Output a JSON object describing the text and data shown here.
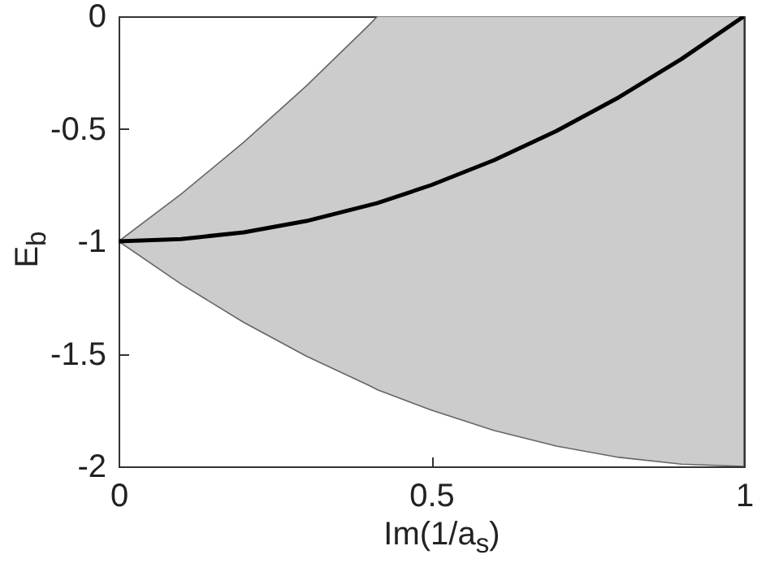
{
  "chart_data": {
    "type": "line",
    "xlabel": "Im(1/a$_{s}$)",
    "ylabel": "E$_{b}$",
    "x": [
      0,
      0.1,
      0.2,
      0.3,
      0.4,
      0.414,
      0.5,
      0.6,
      0.7,
      0.8,
      0.9,
      1
    ],
    "series": [
      {
        "color": "#000000",
        "values": [
          -1,
          -0.99,
          -0.96,
          -0.91,
          -0.84,
          -0.83,
          -0.75,
          -0.64,
          -0.51,
          -0.36,
          -0.19,
          0
        ],
        "lower": [
          -1,
          -1.19,
          -1.36,
          -1.51,
          -1.64,
          -1.66,
          -1.75,
          -1.84,
          -1.91,
          -1.96,
          -1.99,
          -2
        ],
        "upper": [
          -1,
          -0.79,
          -0.56,
          -0.31,
          -0.04,
          0,
          0,
          0,
          0,
          0,
          0,
          0
        ]
      }
    ],
    "xlim": [
      0,
      1
    ],
    "ylim": [
      -2,
      0
    ],
    "xticks": [
      0,
      0.5,
      1
    ],
    "yticks": [
      -2,
      -1.5,
      -1,
      -0.5,
      0
    ],
    "grid": false,
    "marker": "none",
    "line_style": "solid"
  }
}
